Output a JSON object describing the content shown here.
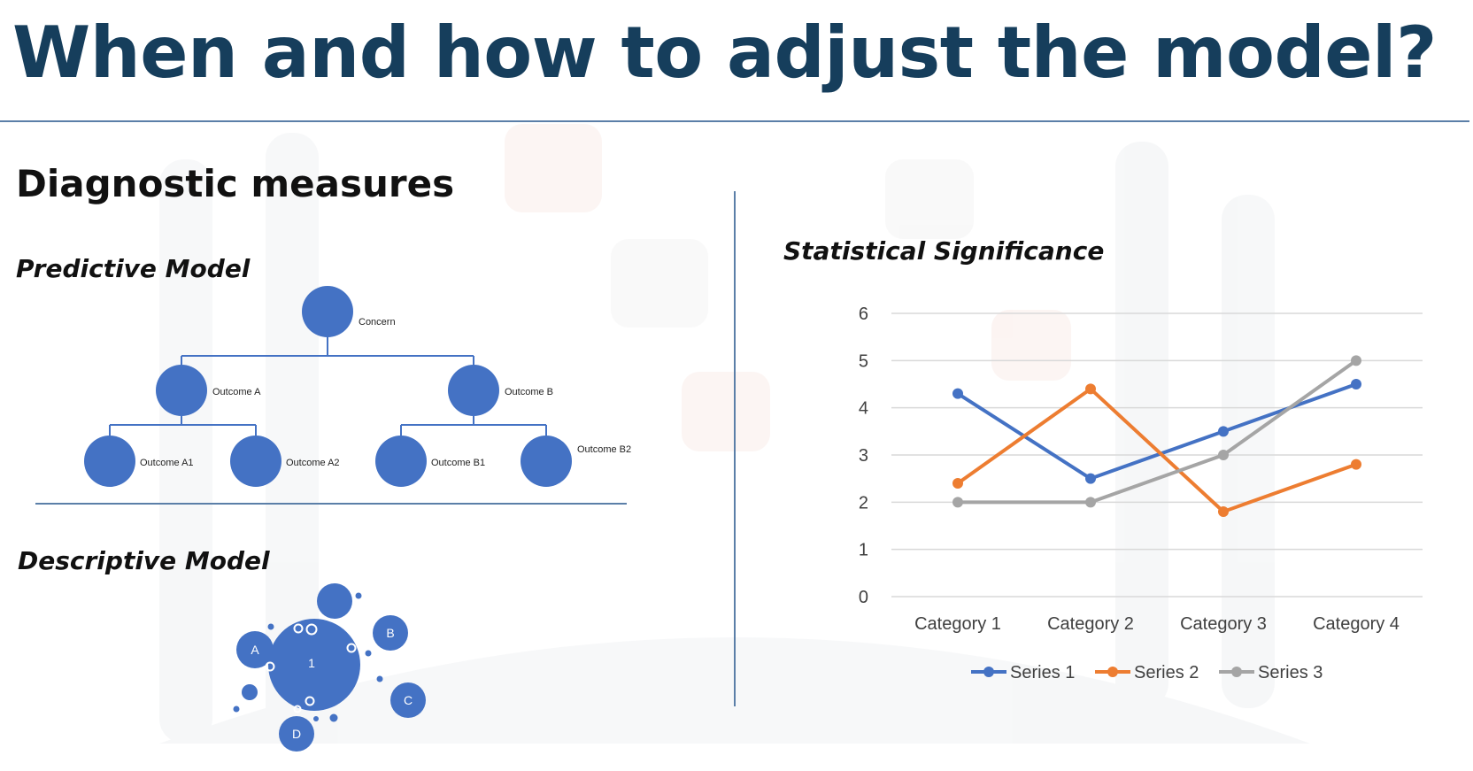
{
  "slide": {
    "title": "When and how to adjust the model?",
    "section_heading": "Diagnostic measures"
  },
  "predictive_model": {
    "heading": "Predictive Model",
    "root": "Concern",
    "outcome_a": "Outcome A",
    "outcome_b": "Outcome B",
    "outcome_a1": "Outcome A1",
    "outcome_a2": "Outcome A2",
    "outcome_b1": "Outcome B1",
    "outcome_b2": "Outcome B2"
  },
  "descriptive_model": {
    "heading": "Descriptive Model",
    "center_label": "1",
    "label_a": "A",
    "label_b": "B",
    "label_c": "C",
    "label_d": "D"
  },
  "statistical_significance": {
    "heading": "Statistical Significance"
  },
  "colors": {
    "node_blue": "#4472c4",
    "title_navy": "#163e5c",
    "rule_blue": "#5b7fa8",
    "series_1": "#4472c4",
    "series_2": "#ed7d31",
    "series_3": "#a5a5a5"
  },
  "chart_data": {
    "type": "line",
    "categories": [
      "Category 1",
      "Category 2",
      "Category 3",
      "Category 4"
    ],
    "series": [
      {
        "name": "Series 1",
        "values": [
          4.3,
          2.5,
          3.5,
          4.5
        ]
      },
      {
        "name": "Series 2",
        "values": [
          2.4,
          4.4,
          1.8,
          2.8
        ]
      },
      {
        "name": "Series 3",
        "values": [
          2,
          2,
          3,
          5
        ]
      }
    ],
    "ylim": [
      0,
      6
    ],
    "yticks": [
      "0",
      "1",
      "2",
      "3",
      "4",
      "5",
      "6"
    ],
    "grid": true,
    "legend": "bottom"
  }
}
